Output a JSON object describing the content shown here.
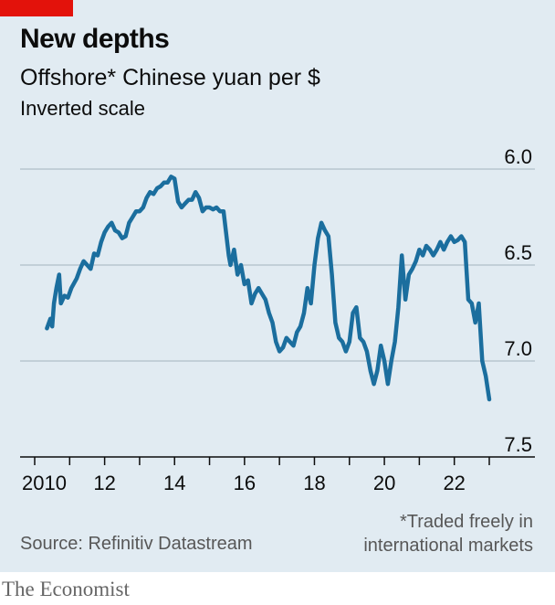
{
  "header": {
    "title": "New depths",
    "subtitle": "Offshore* Chinese yuan per $",
    "note": "Inverted scale"
  },
  "footer": {
    "source": "Source: Refinitiv Datastream",
    "footnote_line1": "*Traded freely in",
    "footnote_line2": "international markets",
    "brand": "The Economist"
  },
  "colors": {
    "line": "#1b6e9e",
    "accent": "#e3120b",
    "grid": "#b7c6cf",
    "axis": "#0c0c0c",
    "background": "#e1ebf2"
  },
  "chart_data": {
    "type": "line",
    "title": "New depths",
    "subtitle": "Offshore* Chinese yuan per $",
    "ylabel": "Offshore* Chinese yuan per $",
    "inverted": true,
    "ylim": [
      6.0,
      7.5
    ],
    "xlim": [
      2010.0,
      2023.0
    ],
    "y_ticks": [
      6.0,
      6.5,
      7.0,
      7.5
    ],
    "y_tick_labels": [
      "6.0",
      "6.5",
      "7.0",
      "7.5"
    ],
    "x_ticks": [
      2010,
      2011,
      2012,
      2013,
      2014,
      2015,
      2016,
      2017,
      2018,
      2019,
      2020,
      2021,
      2022,
      2023
    ],
    "x_tick_labels": [
      {
        "x": 2010,
        "label": "2010"
      },
      {
        "x": 2012,
        "label": "12"
      },
      {
        "x": 2014,
        "label": "14"
      },
      {
        "x": 2016,
        "label": "16"
      },
      {
        "x": 2018,
        "label": "18"
      },
      {
        "x": 2020,
        "label": "20"
      },
      {
        "x": 2022,
        "label": "22"
      }
    ],
    "grid": true,
    "series": [
      {
        "x": [
          2010.35,
          2010.45,
          2010.5,
          2010.55,
          2010.62,
          2010.7,
          2010.75,
          2010.85,
          2010.95,
          2011.05,
          2011.2,
          2011.3,
          2011.4,
          2011.5,
          2011.6,
          2011.7,
          2011.8,
          2011.9,
          2012.0,
          2012.1,
          2012.2,
          2012.3,
          2012.4,
          2012.5,
          2012.6,
          2012.7,
          2012.8,
          2012.9,
          2013.0,
          2013.1,
          2013.2,
          2013.3,
          2013.4,
          2013.5,
          2013.6,
          2013.7,
          2013.8,
          2013.9,
          2014.0,
          2014.1,
          2014.2,
          2014.3,
          2014.4,
          2014.5,
          2014.6,
          2014.7,
          2014.8,
          2014.9,
          2015.0,
          2015.1,
          2015.2,
          2015.3,
          2015.4,
          2015.55,
          2015.6,
          2015.7,
          2015.8,
          2015.9,
          2016.0,
          2016.1,
          2016.2,
          2016.3,
          2016.4,
          2016.5,
          2016.6,
          2016.7,
          2016.8,
          2016.9,
          2017.0,
          2017.1,
          2017.2,
          2017.3,
          2017.4,
          2017.5,
          2017.6,
          2017.7,
          2017.8,
          2017.9,
          2018.0,
          2018.1,
          2018.2,
          2018.3,
          2018.4,
          2018.5,
          2018.6,
          2018.7,
          2018.8,
          2018.9,
          2019.0,
          2019.1,
          2019.2,
          2019.3,
          2019.4,
          2019.5,
          2019.6,
          2019.7,
          2019.8,
          2019.9,
          2020.0,
          2020.1,
          2020.2,
          2020.3,
          2020.4,
          2020.5,
          2020.6,
          2020.7,
          2020.8,
          2020.9,
          2021.0,
          2021.1,
          2021.2,
          2021.3,
          2021.4,
          2021.5,
          2021.6,
          2021.7,
          2021.8,
          2021.9,
          2022.0,
          2022.1,
          2022.2,
          2022.3,
          2022.4,
          2022.5,
          2022.6,
          2022.7,
          2022.8,
          2022.9,
          2023.0
        ],
        "y": [
          6.83,
          6.78,
          6.82,
          6.7,
          6.62,
          6.55,
          6.7,
          6.66,
          6.67,
          6.62,
          6.57,
          6.52,
          6.48,
          6.5,
          6.52,
          6.44,
          6.45,
          6.38,
          6.33,
          6.3,
          6.28,
          6.32,
          6.33,
          6.36,
          6.35,
          6.28,
          6.25,
          6.22,
          6.22,
          6.2,
          6.15,
          6.12,
          6.13,
          6.1,
          6.09,
          6.07,
          6.07,
          6.04,
          6.05,
          6.17,
          6.2,
          6.18,
          6.16,
          6.16,
          6.12,
          6.15,
          6.22,
          6.2,
          6.2,
          6.21,
          6.2,
          6.22,
          6.22,
          6.45,
          6.5,
          6.42,
          6.55,
          6.5,
          6.6,
          6.58,
          6.7,
          6.65,
          6.62,
          6.65,
          6.68,
          6.75,
          6.8,
          6.9,
          6.95,
          6.93,
          6.88,
          6.9,
          6.92,
          6.85,
          6.82,
          6.75,
          6.62,
          6.7,
          6.5,
          6.36,
          6.28,
          6.32,
          6.35,
          6.55,
          6.8,
          6.88,
          6.9,
          6.95,
          6.9,
          6.75,
          6.72,
          6.88,
          6.9,
          6.95,
          7.05,
          7.12,
          7.05,
          6.92,
          7.0,
          7.12,
          7.0,
          6.9,
          6.72,
          6.45,
          6.68,
          6.55,
          6.52,
          6.48,
          6.42,
          6.45,
          6.4,
          6.42,
          6.45,
          6.42,
          6.38,
          6.42,
          6.38,
          6.35,
          6.38,
          6.37,
          6.35,
          6.38,
          6.68,
          6.7,
          6.8,
          6.7,
          7.0,
          7.08,
          7.2
        ],
        "color": "#1b6e9e"
      }
    ]
  }
}
